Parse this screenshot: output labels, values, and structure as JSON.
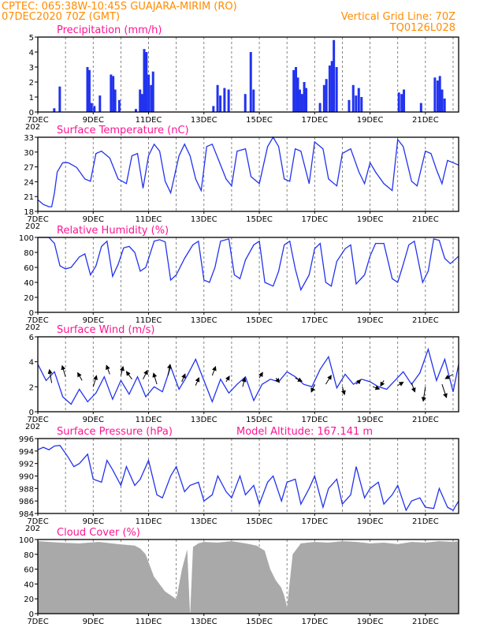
{
  "header": {
    "line1_left": "CPTEC:   065:38W-10:45S   GUAJARA-MIRIM (RO)",
    "line2_left": "07DEC2020 70Z (GMT)",
    "line2_right": "Vertical Grid Line: 70Z",
    "line3_right": "TQ0126L028"
  },
  "colors": {
    "series": "#2233ee",
    "cloud": "#a9a9a9",
    "header": "#ff8c00",
    "title": "#ff1493"
  },
  "x_axis": {
    "labels": [
      "7DEC",
      "9DEC",
      "11DEC",
      "13DEC",
      "15DEC",
      "17DEC",
      "19DEC",
      "21DEC"
    ],
    "label_days": [
      0,
      2,
      4,
      6,
      8,
      10,
      12,
      14
    ],
    "range_days": [
      0,
      15.2
    ],
    "truncated_year": "202"
  },
  "chart_data": [
    {
      "type": "bar",
      "title": "Precipitation (mm/h)",
      "ylim": [
        0,
        5
      ],
      "yticks": [
        "0",
        "1",
        "2",
        "3",
        "4",
        "5"
      ],
      "bars": [
        [
          0.55,
          0.25
        ],
        [
          0.75,
          1.7
        ],
        [
          1.75,
          3.0
        ],
        [
          1.82,
          2.8
        ],
        [
          1.9,
          0.6
        ],
        [
          2.0,
          0.4
        ],
        [
          2.2,
          1.1
        ],
        [
          2.6,
          2.5
        ],
        [
          2.68,
          2.4
        ],
        [
          2.75,
          1.5
        ],
        [
          2.9,
          0.8
        ],
        [
          3.5,
          0.2
        ],
        [
          3.65,
          1.5
        ],
        [
          3.72,
          1.2
        ],
        [
          3.8,
          4.2
        ],
        [
          3.88,
          4.0
        ],
        [
          3.96,
          2.5
        ],
        [
          4.05,
          1.8
        ],
        [
          4.12,
          2.7
        ],
        [
          6.3,
          0.4
        ],
        [
          6.45,
          1.8
        ],
        [
          6.55,
          1.1
        ],
        [
          6.7,
          1.6
        ],
        [
          6.85,
          1.5
        ],
        [
          7.45,
          1.2
        ],
        [
          7.65,
          4.0
        ],
        [
          7.75,
          1.5
        ],
        [
          9.2,
          2.8
        ],
        [
          9.28,
          3.0
        ],
        [
          9.35,
          2.3
        ],
        [
          9.42,
          1.5
        ],
        [
          9.5,
          1.2
        ],
        [
          9.58,
          2.0
        ],
        [
          9.65,
          1.6
        ],
        [
          10.15,
          0.6
        ],
        [
          10.3,
          1.8
        ],
        [
          10.38,
          2.2
        ],
        [
          10.5,
          3.1
        ],
        [
          10.58,
          3.4
        ],
        [
          10.65,
          4.8
        ],
        [
          10.75,
          3.0
        ],
        [
          11.2,
          0.8
        ],
        [
          11.35,
          1.8
        ],
        [
          11.45,
          1.1
        ],
        [
          11.55,
          1.6
        ],
        [
          11.65,
          1.0
        ],
        [
          13.0,
          1.3
        ],
        [
          13.1,
          1.2
        ],
        [
          13.18,
          1.5
        ],
        [
          13.8,
          0.6
        ],
        [
          14.3,
          2.3
        ],
        [
          14.4,
          2.1
        ],
        [
          14.48,
          2.4
        ],
        [
          14.56,
          1.5
        ],
        [
          14.65,
          0.9
        ]
      ]
    },
    {
      "type": "line",
      "title": "Surface Temperature (nC)",
      "ylim": [
        18,
        34
      ],
      "yticks": [
        "18",
        "21",
        "24",
        "27",
        "30",
        "33"
      ],
      "x": [
        0,
        0.1,
        0.2,
        0.4,
        0.5,
        0.6,
        0.7,
        0.9,
        1.1,
        1.4,
        1.7,
        1.9,
        2.1,
        2.3,
        2.6,
        2.9,
        3.2,
        3.4,
        3.6,
        3.8,
        4.0,
        4.2,
        4.4,
        4.6,
        4.8,
        5.1,
        5.3,
        5.5,
        5.7,
        5.9,
        6.1,
        6.3,
        6.5,
        6.8,
        7.0,
        7.2,
        7.5,
        7.7,
        8.0,
        8.3,
        8.5,
        8.7,
        8.9,
        9.1,
        9.3,
        9.5,
        9.8,
        10.0,
        10.3,
        10.5,
        10.8,
        11.0,
        11.3,
        11.6,
        11.8,
        12.0,
        12.2,
        12.5,
        12.8,
        13.0,
        13.2,
        13.5,
        13.7,
        14.0,
        14.2,
        14.4,
        14.6,
        14.8,
        15.0,
        15.2
      ],
      "y": [
        20.5,
        20.0,
        19.5,
        19.0,
        19.0,
        22.0,
        26.5,
        28.5,
        28.5,
        27.5,
        25.0,
        24.5,
        30.5,
        31.0,
        29.5,
        25.0,
        24.0,
        30.0,
        30.5,
        23.0,
        30.0,
        32.5,
        31.0,
        24.5,
        22.0,
        30.0,
        32.5,
        30.0,
        25.0,
        22.5,
        32.0,
        32.5,
        29.5,
        25.0,
        23.5,
        31.0,
        31.5,
        25.5,
        24.0,
        32.0,
        34.0,
        32.0,
        25.0,
        24.5,
        31.5,
        31.0,
        24.0,
        33.0,
        31.5,
        25.0,
        23.5,
        30.5,
        31.5,
        26.5,
        24.0,
        28.5,
        26.5,
        24.0,
        22.5,
        33.5,
        32.0,
        24.5,
        23.5,
        31.0,
        30.5,
        27.0,
        24.0,
        29.0,
        28.5,
        28.0
      ]
    },
    {
      "type": "line",
      "title": "Relative Humidity (%)",
      "ylim": [
        0,
        100
      ],
      "yticks": [
        "0",
        "20",
        "40",
        "60",
        "80",
        "100"
      ],
      "x": [
        0,
        0.2,
        0.4,
        0.6,
        0.8,
        1.0,
        1.2,
        1.5,
        1.7,
        1.9,
        2.1,
        2.3,
        2.5,
        2.7,
        2.9,
        3.1,
        3.3,
        3.5,
        3.7,
        3.9,
        4.2,
        4.4,
        4.6,
        4.8,
        5.0,
        5.3,
        5.6,
        5.8,
        6.0,
        6.2,
        6.4,
        6.6,
        6.9,
        7.1,
        7.3,
        7.5,
        7.8,
        8.0,
        8.2,
        8.5,
        8.7,
        8.9,
        9.1,
        9.3,
        9.5,
        9.8,
        10.0,
        10.2,
        10.4,
        10.6,
        10.8,
        11.1,
        11.3,
        11.5,
        11.8,
        12.0,
        12.2,
        12.5,
        12.8,
        13.0,
        13.2,
        13.4,
        13.6,
        13.9,
        14.1,
        14.3,
        14.5,
        14.7,
        14.9,
        15.2
      ],
      "y": [
        100,
        100,
        100,
        92,
        62,
        58,
        60,
        74,
        78,
        50,
        62,
        88,
        95,
        48,
        64,
        86,
        88,
        80,
        55,
        60,
        95,
        97,
        94,
        43,
        50,
        72,
        90,
        95,
        43,
        40,
        60,
        95,
        98,
        50,
        45,
        70,
        90,
        95,
        40,
        35,
        55,
        90,
        95,
        58,
        30,
        50,
        85,
        92,
        40,
        35,
        68,
        85,
        90,
        38,
        50,
        75,
        92,
        92,
        45,
        40,
        64,
        90,
        95,
        40,
        55,
        98,
        96,
        72,
        65,
        75
      ]
    },
    {
      "type": "line",
      "title": "Surface Wind (m/s)",
      "ylim": [
        0,
        6
      ],
      "yticks": [
        "0",
        "2",
        "4",
        "6"
      ],
      "x": [
        0,
        0.3,
        0.6,
        0.9,
        1.2,
        1.5,
        1.8,
        2.1,
        2.4,
        2.7,
        3.0,
        3.3,
        3.6,
        3.9,
        4.2,
        4.5,
        4.8,
        5.1,
        5.4,
        5.7,
        6.0,
        6.3,
        6.6,
        6.9,
        7.2,
        7.5,
        7.8,
        8.1,
        8.4,
        8.7,
        9.0,
        9.3,
        9.6,
        9.9,
        10.2,
        10.5,
        10.8,
        11.1,
        11.4,
        11.7,
        12.0,
        12.3,
        12.6,
        12.9,
        13.2,
        13.5,
        13.8,
        14.1,
        14.4,
        14.7,
        15.0,
        15.2
      ],
      "y": [
        3.8,
        2.5,
        3.2,
        1.2,
        0.6,
        1.8,
        0.8,
        1.5,
        2.8,
        1.0,
        2.5,
        1.4,
        2.8,
        1.2,
        2.0,
        1.6,
        3.6,
        1.8,
        2.9,
        4.2,
        2.5,
        0.8,
        2.6,
        1.5,
        2.2,
        2.8,
        0.9,
        2.2,
        2.6,
        2.4,
        3.2,
        2.8,
        2.2,
        2.0,
        3.4,
        4.4,
        1.9,
        3.0,
        2.2,
        2.6,
        2.4,
        2.0,
        1.8,
        2.5,
        3.2,
        2.2,
        3.1,
        5.0,
        2.5,
        4.2,
        1.6,
        3.8
      ],
      "arrows": [
        [
          0.5,
          2.3,
          -0.2,
          1.2
        ],
        [
          1.0,
          2.8,
          -0.3,
          1.0
        ],
        [
          1.6,
          2.5,
          -0.4,
          0.7
        ],
        [
          2.0,
          2.0,
          0.3,
          1.0
        ],
        [
          2.6,
          3.0,
          -0.3,
          0.8
        ],
        [
          3.0,
          2.9,
          0.2,
          0.8
        ],
        [
          3.4,
          2.6,
          -0.5,
          0.7
        ],
        [
          3.8,
          2.6,
          0.4,
          0.8
        ],
        [
          4.3,
          2.2,
          -0.3,
          1.0
        ],
        [
          4.7,
          2.9,
          0.2,
          1.0
        ],
        [
          5.2,
          2.4,
          0.3,
          0.7
        ],
        [
          5.7,
          2.1,
          0.3,
          0.7
        ],
        [
          6.3,
          2.9,
          0.3,
          0.8
        ],
        [
          6.8,
          2.4,
          0.3,
          0.5
        ],
        [
          7.4,
          2.0,
          0.2,
          0.8
        ],
        [
          8.0,
          2.7,
          0.3,
          0.5
        ],
        [
          8.6,
          2.7,
          0.3,
          -0.4
        ],
        [
          9.3,
          2.7,
          0.6,
          -0.3
        ],
        [
          10.0,
          2.2,
          -0.3,
          -0.7
        ],
        [
          10.4,
          2.2,
          0.5,
          0.8
        ],
        [
          11.0,
          2.0,
          0.2,
          -0.7
        ],
        [
          11.5,
          2.2,
          0.4,
          0.4
        ],
        [
          12.1,
          2.0,
          0.6,
          -0.2
        ],
        [
          12.5,
          2.5,
          -0.3,
          -0.5
        ],
        [
          13.0,
          2.1,
          0.5,
          0.3
        ],
        [
          13.5,
          2.3,
          0.3,
          -0.8
        ],
        [
          14.0,
          2.0,
          -0.2,
          -1.3
        ],
        [
          14.6,
          2.2,
          0.4,
          -1.2
        ],
        [
          15.0,
          3.0,
          -0.7,
          -0.4
        ]
      ]
    },
    {
      "type": "line",
      "title": "Surface Pressure (hPa)",
      "annotation": "Model Altitude: 167.141 m",
      "ylim": [
        984,
        996
      ],
      "yticks": [
        "984",
        "986",
        "988",
        "990",
        "992",
        "994",
        "996"
      ],
      "x": [
        0,
        0.2,
        0.4,
        0.6,
        0.8,
        1.1,
        1.3,
        1.5,
        1.8,
        2.0,
        2.3,
        2.5,
        2.7,
        3.0,
        3.2,
        3.5,
        3.7,
        4.0,
        4.3,
        4.5,
        4.8,
        5.0,
        5.3,
        5.5,
        5.8,
        6.0,
        6.3,
        6.5,
        6.8,
        7.0,
        7.3,
        7.5,
        7.8,
        8.0,
        8.3,
        8.5,
        8.8,
        9.0,
        9.3,
        9.5,
        9.8,
        10.0,
        10.3,
        10.5,
        10.8,
        11.0,
        11.3,
        11.5,
        11.8,
        12.0,
        12.3,
        12.5,
        12.8,
        13.0,
        13.3,
        13.5,
        13.8,
        14.0,
        14.3,
        14.5,
        14.8,
        15.0,
        15.2
      ],
      "y": [
        994.2,
        994.6,
        994.2,
        994.8,
        994.9,
        993.0,
        991.5,
        992.0,
        993.5,
        989.5,
        989.0,
        992.5,
        991.0,
        988.5,
        991.5,
        988.5,
        989.5,
        992.5,
        987.0,
        986.5,
        990.0,
        991.5,
        987.5,
        988.5,
        989.0,
        986.0,
        987.0,
        990.0,
        987.5,
        986.5,
        990.0,
        987.0,
        988.5,
        985.5,
        989.0,
        990.0,
        986.0,
        989.0,
        989.5,
        985.5,
        988.0,
        990.0,
        985.0,
        988.0,
        989.5,
        985.5,
        987.0,
        991.5,
        986.5,
        988.0,
        989.0,
        985.5,
        987.0,
        988.5,
        984.5,
        986.0,
        986.5,
        985.0,
        984.8,
        988.0,
        985.0,
        984.5,
        986.0
      ]
    },
    {
      "type": "area",
      "title": "Cloud Cover (%)",
      "ylim": [
        0,
        100
      ],
      "yticks": [
        "0",
        "20",
        "40",
        "60",
        "80",
        "100"
      ],
      "x": [
        0,
        0.8,
        1.5,
        2.2,
        2.9,
        3.5,
        3.7,
        3.9,
        4.0,
        4.2,
        4.4,
        4.6,
        4.8,
        5.0,
        5.2,
        5.4,
        5.5,
        5.6,
        5.8,
        6.0,
        6.5,
        7.0,
        7.5,
        7.9,
        8.2,
        8.4,
        8.6,
        8.8,
        8.9,
        9.0,
        9.2,
        9.5,
        10.0,
        10.5,
        11.0,
        11.5,
        12.0,
        12.5,
        13.0,
        13.5,
        14.0,
        14.5,
        15.0,
        15.2
      ],
      "y": [
        98,
        96,
        95,
        97,
        94,
        92,
        88,
        80,
        70,
        50,
        40,
        30,
        25,
        20,
        60,
        88,
        2,
        90,
        95,
        97,
        96,
        98,
        95,
        92,
        85,
        60,
        45,
        35,
        25,
        10,
        80,
        95,
        97,
        96,
        98,
        97,
        95,
        96,
        94,
        97,
        96,
        98,
        97,
        98
      ]
    }
  ]
}
